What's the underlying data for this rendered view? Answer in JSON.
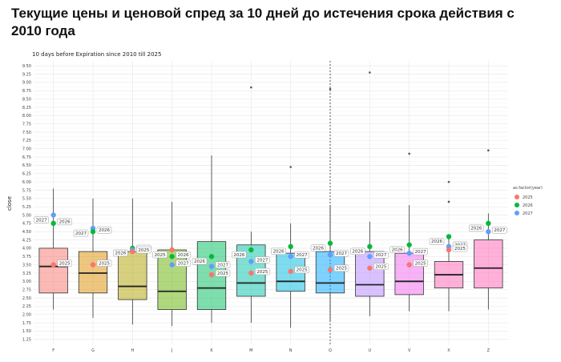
{
  "page": {
    "title": "Текущие цены и ценовой спред за 10 дней до истечения срока действия с 2010 года"
  },
  "chart_data": {
    "type": "box",
    "title": "10 days before Expiration since 2010 till 2025",
    "xlabel": "",
    "ylabel": "close",
    "ylim": [
      1.25,
      9.5
    ],
    "yticks": [
      1.25,
      1.5,
      1.75,
      2.0,
      2.25,
      2.5,
      2.75,
      3.0,
      3.25,
      3.5,
      3.75,
      4.0,
      4.25,
      4.5,
      4.75,
      5.0,
      5.25,
      5.5,
      5.75,
      6.0,
      6.25,
      6.5,
      6.75,
      7.0,
      7.25,
      7.5,
      7.75,
      8.0,
      8.25,
      8.5,
      8.75,
      9.0,
      9.25,
      9.5
    ],
    "ytick_labels": [
      "1.25",
      "1.50",
      "1.75",
      "2.00",
      "2.25",
      "2.50",
      "2.75",
      "3.00",
      "3.25",
      "3.50",
      "3.75",
      "4.00",
      "4.25",
      "4.50",
      "4.75",
      "5.00",
      "5.25",
      "5.50",
      "5.75",
      "6.00",
      "6.25",
      "6.50",
      "6.75",
      "7.00",
      "7.25",
      "7.50",
      "7.75",
      "8.00",
      "8.25",
      "8.50",
      "8.75",
      "9.00",
      "9.25",
      "9.50"
    ],
    "grid": true,
    "reference_line": {
      "category": "Q",
      "style": "dashed"
    },
    "categories": [
      "F",
      "G",
      "H",
      "J",
      "K",
      "M",
      "N",
      "Q",
      "U",
      "V",
      "X",
      "Z"
    ],
    "boxes": [
      {
        "category": "F",
        "color": "#F8766D",
        "whisker_low": 2.15,
        "q1": 2.65,
        "median": 3.45,
        "q3": 4.0,
        "whisker_high": 5.8,
        "outliers": []
      },
      {
        "category": "G",
        "color": "#DB8E00",
        "whisker_low": 1.9,
        "q1": 2.65,
        "median": 3.25,
        "q3": 3.9,
        "whisker_high": 5.5,
        "outliers": []
      },
      {
        "category": "H",
        "color": "#AEA200",
        "whisker_low": 1.7,
        "q1": 2.45,
        "median": 2.85,
        "q3": 3.9,
        "whisker_high": 5.5,
        "outliers": []
      },
      {
        "category": "J",
        "color": "#64B200",
        "whisker_low": 1.65,
        "q1": 2.15,
        "median": 2.7,
        "q3": 3.95,
        "whisker_high": 5.4,
        "outliers": []
      },
      {
        "category": "K",
        "color": "#00BD5C",
        "whisker_low": 1.75,
        "q1": 2.15,
        "median": 2.8,
        "q3": 4.2,
        "whisker_high": 6.8,
        "outliers": []
      },
      {
        "category": "M",
        "color": "#00C1A7",
        "whisker_low": 1.75,
        "q1": 2.55,
        "median": 2.95,
        "q3": 4.1,
        "whisker_high": 4.5,
        "outliers": [
          8.85
        ]
      },
      {
        "category": "N",
        "color": "#00BADE",
        "whisker_low": 1.6,
        "q1": 2.7,
        "median": 3.0,
        "q3": 3.85,
        "whisker_high": 4.75,
        "outliers": [
          6.45
        ]
      },
      {
        "category": "Q",
        "color": "#00A6FF",
        "whisker_low": 1.8,
        "q1": 2.65,
        "median": 2.95,
        "q3": 3.9,
        "whisker_high": 5.3,
        "outliers": [
          8.8
        ]
      },
      {
        "category": "U",
        "color": "#B385FF",
        "whisker_low": 1.95,
        "q1": 2.55,
        "median": 2.9,
        "q3": 3.9,
        "whisker_high": 4.8,
        "outliers": [
          9.3
        ]
      },
      {
        "category": "V",
        "color": "#EF67EB",
        "whisker_low": 2.1,
        "q1": 2.6,
        "median": 3.0,
        "q3": 3.85,
        "whisker_high": 5.3,
        "outliers": [
          6.85
        ]
      },
      {
        "category": "X",
        "color": "#FF63B6",
        "whisker_low": 2.1,
        "q1": 2.8,
        "median": 3.2,
        "q3": 3.6,
        "whisker_high": 4.35,
        "outliers": [
          6.0,
          5.4
        ]
      },
      {
        "category": "Z",
        "color": "#FF63B6",
        "whisker_low": 2.15,
        "q1": 2.8,
        "median": 3.4,
        "q3": 4.25,
        "whisker_high": 5.05,
        "outliers": [
          6.95
        ]
      }
    ],
    "legend": {
      "title": "as.factor(year)",
      "position": "right",
      "entries": [
        {
          "label": "2025",
          "color": "#F8766D"
        },
        {
          "label": "2026",
          "color": "#00BA38"
        },
        {
          "label": "2027",
          "color": "#619CFF"
        }
      ]
    },
    "points": [
      {
        "category": "F",
        "year": "2027",
        "value": 5.0,
        "label": "2027"
      },
      {
        "category": "F",
        "year": "2026",
        "value": 4.75,
        "label": "2026"
      },
      {
        "category": "F",
        "year": "2025",
        "value": 3.5,
        "label": "2025"
      },
      {
        "category": "G",
        "year": "2027",
        "value": 4.6,
        "label": "2027"
      },
      {
        "category": "G",
        "year": "2026",
        "value": 4.5,
        "label": "2026"
      },
      {
        "category": "G",
        "year": "2025",
        "value": 3.5,
        "label": "2025"
      },
      {
        "category": "H",
        "year": "2026",
        "value": 4.0,
        "label": "2026"
      },
      {
        "category": "H",
        "year": "2027",
        "value": 3.95,
        "label": "2027"
      },
      {
        "category": "H",
        "year": "2025",
        "value": 3.9,
        "label": "2025"
      },
      {
        "category": "J",
        "year": "2025",
        "value": 3.95,
        "label": "2025"
      },
      {
        "category": "J",
        "year": "2026",
        "value": 3.75,
        "label": "2026"
      },
      {
        "category": "J",
        "year": "2027",
        "value": 3.5,
        "label": "2027"
      },
      {
        "category": "K",
        "year": "2026",
        "value": 3.75,
        "label": "2026"
      },
      {
        "category": "K",
        "year": "2027",
        "value": 3.45,
        "label": "2027"
      },
      {
        "category": "K",
        "year": "2025",
        "value": 3.2,
        "label": "2025"
      },
      {
        "category": "M",
        "year": "2026",
        "value": 3.95,
        "label": "2026"
      },
      {
        "category": "M",
        "year": "2027",
        "value": 3.6,
        "label": "2027"
      },
      {
        "category": "M",
        "year": "2025",
        "value": 3.25,
        "label": "2025"
      },
      {
        "category": "N",
        "year": "2026",
        "value": 4.05,
        "label": "2026"
      },
      {
        "category": "N",
        "year": "2027",
        "value": 3.75,
        "label": "2027"
      },
      {
        "category": "N",
        "year": "2025",
        "value": 3.3,
        "label": "2025"
      },
      {
        "category": "Q",
        "year": "2026",
        "value": 4.15,
        "label": "2026"
      },
      {
        "category": "Q",
        "year": "2027",
        "value": 3.8,
        "label": "2027"
      },
      {
        "category": "Q",
        "year": "2025",
        "value": 3.35,
        "label": "2025"
      },
      {
        "category": "U",
        "year": "2026",
        "value": 4.05,
        "label": "2026"
      },
      {
        "category": "U",
        "year": "2027",
        "value": 3.75,
        "label": "2027"
      },
      {
        "category": "U",
        "year": "2025",
        "value": 3.4,
        "label": "2025"
      },
      {
        "category": "V",
        "year": "2026",
        "value": 4.1,
        "label": "2026"
      },
      {
        "category": "V",
        "year": "2027",
        "value": 3.85,
        "label": "2027"
      },
      {
        "category": "V",
        "year": "2025",
        "value": 3.5,
        "label": "2025"
      },
      {
        "category": "X",
        "year": "2026",
        "value": 4.35,
        "label": "2026"
      },
      {
        "category": "X",
        "year": "2027",
        "value": 4.05,
        "label": "2027"
      },
      {
        "category": "X",
        "year": "2025",
        "value": 3.95,
        "label": "2025"
      },
      {
        "category": "Z",
        "year": "2026",
        "value": 4.75,
        "label": "2026"
      },
      {
        "category": "Z",
        "year": "2027",
        "value": 4.5,
        "label": "2027"
      }
    ]
  }
}
